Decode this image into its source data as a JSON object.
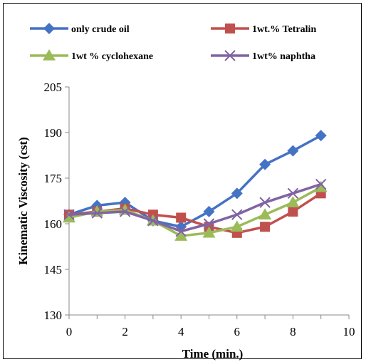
{
  "chart_data": {
    "type": "line",
    "xlabel": "Time (min.)",
    "ylabel": "Kinematic Viscosity (cst)",
    "xlim": [
      0,
      10
    ],
    "ylim": [
      130,
      205
    ],
    "xticks": [
      0,
      2,
      4,
      6,
      8,
      10
    ],
    "yticks": [
      130,
      145,
      160,
      175,
      190,
      205
    ],
    "grid": false,
    "legend_position": "top",
    "x": [
      0,
      1,
      2,
      3,
      4,
      5,
      6,
      7,
      8,
      9
    ],
    "series": [
      {
        "name": "only crude oil",
        "color": "#4472C4",
        "marker": "diamond",
        "values": [
          163,
          166,
          167,
          161,
          159,
          164,
          170,
          179.5,
          184,
          189
        ]
      },
      {
        "name": "1wt.% Tetralin",
        "color": "#C0504D",
        "marker": "square",
        "values": [
          163,
          164,
          165,
          163,
          162,
          159,
          157,
          159,
          164,
          170
        ]
      },
      {
        "name": "1wt % cyclohexane",
        "color": "#9BBB59",
        "marker": "triangle",
        "values": [
          162,
          164,
          164.5,
          161,
          156,
          157,
          159,
          163,
          167,
          172
        ]
      },
      {
        "name": "1wt% naphtha",
        "color": "#8064A2",
        "marker": "x",
        "values": [
          163,
          163.5,
          164,
          161,
          157.5,
          160,
          163,
          167,
          170,
          173
        ]
      }
    ]
  }
}
